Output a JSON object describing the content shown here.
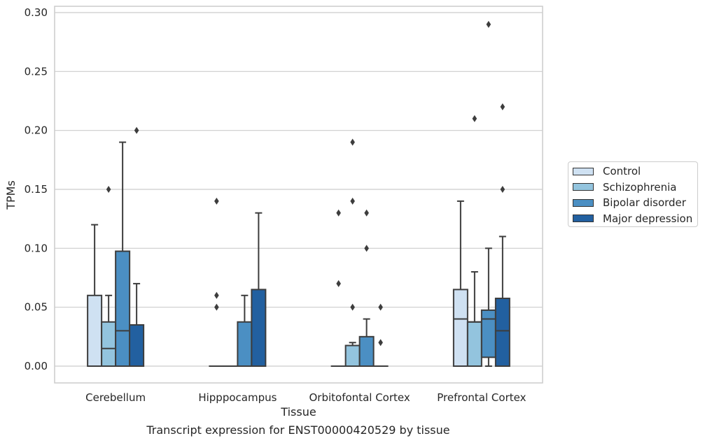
{
  "chart_data": {
    "type": "box",
    "title": "",
    "caption": "Transcript expression for ENST00000420529 by tissue",
    "xlabel": "Tissue",
    "ylabel": "TPMs",
    "ylim": [
      -0.014,
      0.305
    ],
    "yticks": [
      "0.00",
      "0.05",
      "0.10",
      "0.15",
      "0.20",
      "0.25",
      "0.30"
    ],
    "grid": "horizontal",
    "legend_position": "right",
    "categories": [
      "Cerebellum",
      "Hipppocampus",
      "Orbitofontal Cortex",
      "Prefrontal Cortex"
    ],
    "series": [
      {
        "name": "Control",
        "color": "#cfe1f2",
        "boxes": [
          {
            "q1": 0,
            "median": 0,
            "q3": 0.06,
            "whisker_low": 0,
            "whisker_high": 0.12,
            "outliers": []
          },
          {
            "q1": 0,
            "median": 0,
            "q3": 0,
            "whisker_low": 0,
            "whisker_high": 0,
            "outliers": [
              0.05,
              0.06,
              0.14
            ]
          },
          {
            "q1": 0,
            "median": 0,
            "q3": 0,
            "whisker_low": 0,
            "whisker_high": 0,
            "outliers": [
              0.07,
              0.13
            ]
          },
          {
            "q1": 0,
            "median": 0.04,
            "q3": 0.065,
            "whisker_low": 0,
            "whisker_high": 0.14,
            "outliers": []
          }
        ]
      },
      {
        "name": "Schizophrenia",
        "color": "#93c4de",
        "boxes": [
          {
            "q1": 0,
            "median": 0.015,
            "q3": 0.0375,
            "whisker_low": 0,
            "whisker_high": 0.06,
            "outliers": [
              0.15
            ]
          },
          {
            "q1": 0,
            "median": 0,
            "q3": 0,
            "whisker_low": 0,
            "whisker_high": 0,
            "outliers": []
          },
          {
            "q1": 0,
            "median": 0,
            "q3": 0.0175,
            "whisker_low": 0,
            "whisker_high": 0.02,
            "outliers": [
              0.05,
              0.14,
              0.19
            ]
          },
          {
            "q1": 0,
            "median": 0.0375,
            "q3": 0.0375,
            "whisker_low": 0,
            "whisker_high": 0.08,
            "outliers": [
              0.21
            ]
          }
        ]
      },
      {
        "name": "Bipolar disorder",
        "color": "#4b8fc3",
        "boxes": [
          {
            "q1": 0,
            "median": 0.03,
            "q3": 0.0975,
            "whisker_low": 0,
            "whisker_high": 0.19,
            "outliers": []
          },
          {
            "q1": 0,
            "median": 0,
            "q3": 0.0375,
            "whisker_low": 0,
            "whisker_high": 0.06,
            "outliers": []
          },
          {
            "q1": 0,
            "median": 0,
            "q3": 0.025,
            "whisker_low": 0,
            "whisker_high": 0.04,
            "outliers": [
              0.1,
              0.13
            ]
          },
          {
            "q1": 0.0075,
            "median": 0.04,
            "q3": 0.0475,
            "whisker_low": 0,
            "whisker_high": 0.1,
            "outliers": [
              0.29
            ]
          }
        ]
      },
      {
        "name": "Major depression",
        "color": "#2260a0",
        "boxes": [
          {
            "q1": 0,
            "median": 0,
            "q3": 0.035,
            "whisker_low": 0,
            "whisker_high": 0.07,
            "outliers": [
              0.2
            ]
          },
          {
            "q1": 0,
            "median": 0,
            "q3": 0.065,
            "whisker_low": 0,
            "whisker_high": 0.13,
            "outliers": []
          },
          {
            "q1": 0,
            "median": 0,
            "q3": 0,
            "whisker_low": 0,
            "whisker_high": 0,
            "outliers": [
              0.02,
              0.05
            ]
          },
          {
            "q1": 0,
            "median": 0.03,
            "q3": 0.0575,
            "whisker_low": 0,
            "whisker_high": 0.11,
            "outliers": [
              0.15,
              0.22
            ]
          }
        ]
      }
    ]
  }
}
